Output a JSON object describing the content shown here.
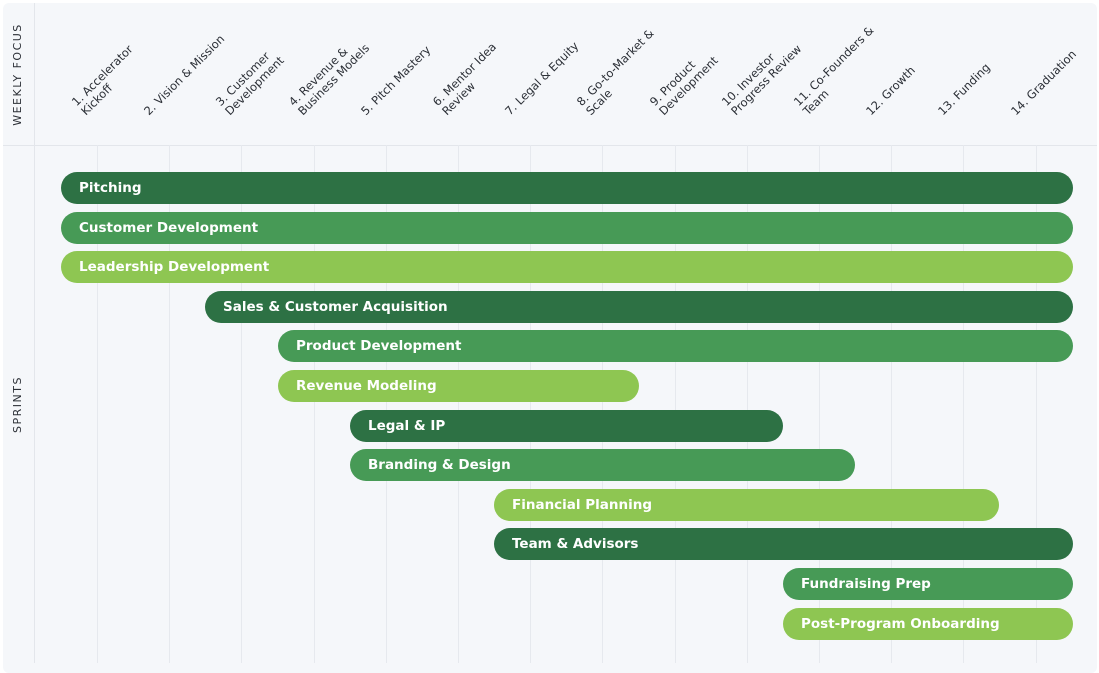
{
  "header": {
    "weekly_focus_label": "WEEKLY FOCUS"
  },
  "sidebar": {
    "sprints_label": "SPRINTS"
  },
  "colors": {
    "dark": "#2d7144",
    "medium": "#479a56",
    "light": "#8ec652"
  },
  "weeks": [
    {
      "lines": [
        "1. Accelerator",
        "Kickoff"
      ]
    },
    {
      "lines": [
        "2. Vision & Mission"
      ]
    },
    {
      "lines": [
        "3. Customer",
        "Development"
      ]
    },
    {
      "lines": [
        "4. Revenue &",
        "Business Models"
      ]
    },
    {
      "lines": [
        "5. Pitch Mastery"
      ]
    },
    {
      "lines": [
        "6. Mentor Idea",
        "Review"
      ]
    },
    {
      "lines": [
        "7. Legal & Equity"
      ]
    },
    {
      "lines": [
        "8. Go-to-Market &",
        "Scale"
      ]
    },
    {
      "lines": [
        "9. Product",
        "Development"
      ]
    },
    {
      "lines": [
        "10. Investor",
        "Progress Review"
      ]
    },
    {
      "lines": [
        "11. Co-Founders &",
        "Team"
      ]
    },
    {
      "lines": [
        "12. Growth"
      ]
    },
    {
      "lines": [
        "13. Funding"
      ]
    },
    {
      "lines": [
        "14. Graduation"
      ]
    }
  ],
  "sprints": [
    {
      "label": "Pitching",
      "start_week": 1,
      "end_week": 14,
      "color": "dark"
    },
    {
      "label": "Customer Development",
      "start_week": 1,
      "end_week": 14,
      "color": "medium"
    },
    {
      "label": "Leadership Development",
      "start_week": 1,
      "end_week": 14,
      "color": "light"
    },
    {
      "label": "Sales & Customer Acquisition",
      "start_week": 3,
      "end_week": 14,
      "color": "dark"
    },
    {
      "label": "Product Development",
      "start_week": 4,
      "end_week": 14,
      "color": "medium"
    },
    {
      "label": "Revenue Modeling",
      "start_week": 4,
      "end_week": 8,
      "color": "light"
    },
    {
      "label": "Legal & IP",
      "start_week": 5,
      "end_week": 10,
      "color": "dark"
    },
    {
      "label": "Branding & Design",
      "start_week": 5,
      "end_week": 11,
      "color": "medium"
    },
    {
      "label": "Financial Planning",
      "start_week": 7,
      "end_week": 13,
      "color": "light"
    },
    {
      "label": "Team & Advisors",
      "start_week": 7,
      "end_week": 14,
      "color": "dark"
    },
    {
      "label": "Fundraising Prep",
      "start_week": 11,
      "end_week": 14,
      "color": "medium"
    },
    {
      "label": "Post-Program Onboarding",
      "start_week": 11,
      "end_week": 14,
      "color": "light"
    }
  ]
}
